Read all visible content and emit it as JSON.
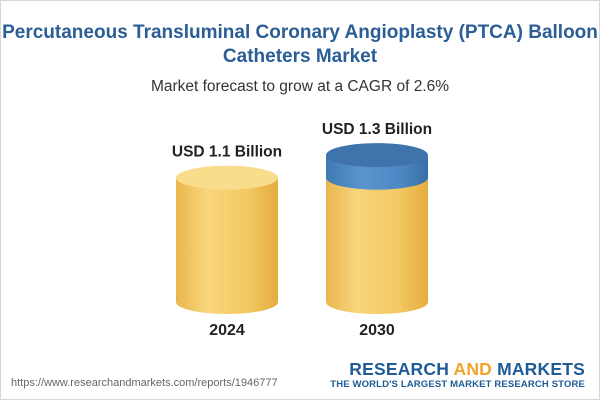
{
  "chart_data": {
    "type": "bar",
    "title": "Percutaneous Transluminal Coronary Angioplasty (PTCA) Balloon Catheters Market",
    "subtitle": "Market forecast to grow at a CAGR of 2.6%",
    "categories": [
      "2024",
      "2030"
    ],
    "values": [
      1.1,
      1.3
    ],
    "data_labels": [
      "USD 1.1 Billion",
      "USD 1.3 Billion"
    ],
    "unit": "USD Billion",
    "xlabel": "",
    "ylabel": ""
  },
  "footer": {
    "url": "https://www.researchandmarkets.com/reports/1946777"
  },
  "brand": {
    "word1": "RESEARCH",
    "word2": "AND",
    "word3": "MARKETS",
    "tagline": "THE WORLD'S LARGEST MARKET RESEARCH STORE"
  },
  "colors": {
    "title": "#2b5d96",
    "cylinder_body": "#f3cb6a",
    "cylinder_top": "#f8de8e",
    "growth_segment": "#4c87c3",
    "brand_blue": "#1e5b97",
    "brand_orange": "#f2a32a"
  }
}
